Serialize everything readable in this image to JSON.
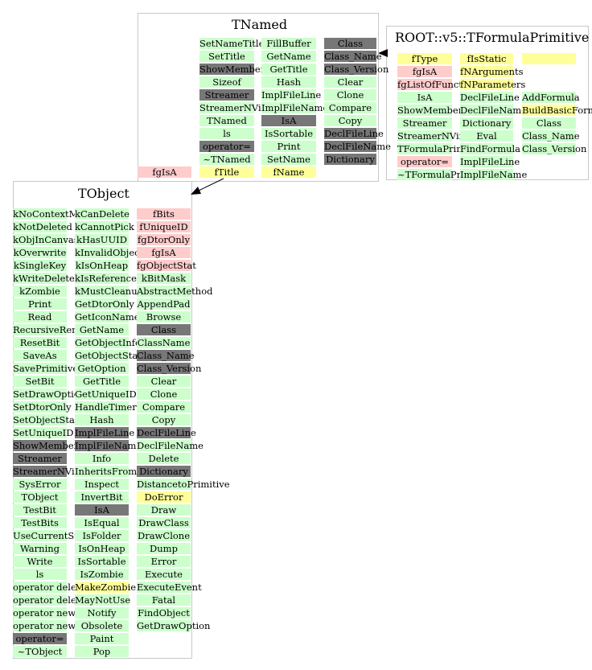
{
  "colors": {
    "method": "#ccffcc",
    "inherited": "#777777",
    "static_member": "#ffcccc",
    "data_member": "#ffff99",
    "border": "#c8c8c8"
  },
  "tnamed": {
    "title": "TNamed",
    "left_cells": [
      "fgIsA"
    ],
    "columns": [
      [
        "SetNameTitle",
        "SetTitle",
        "ShowMembers",
        "Sizeof",
        "Streamer",
        "StreamerNVirtual",
        "TNamed",
        "ls",
        "operator=",
        "~TNamed",
        "fTitle"
      ],
      [
        "FillBuffer",
        "GetName",
        "GetTitle",
        "Hash",
        "ImplFileLine",
        "ImplFileName",
        "IsA",
        "IsSortable",
        "Print",
        "SetName",
        "fName"
      ],
      [
        "Class",
        "Class_Name",
        "Class_Version",
        "Clear",
        "Clone",
        "Compare",
        "Copy",
        "DeclFileLine",
        "DeclFileName",
        "Dictionary"
      ]
    ]
  },
  "formula": {
    "title": "ROOT::v5::TFormulaPrimitive",
    "columns": [
      [
        "fType",
        "fgIsA",
        "fgListOfFunction",
        "IsA",
        "ShowMembers",
        "Streamer",
        "StreamerNVirtual",
        "TFormulaPrimitive",
        "operator=",
        "~TFormulaPrimitive"
      ],
      [
        "fIsStatic",
        "fNArguments",
        "fNParameters",
        "DeclFileLine",
        "DeclFileName",
        "Dictionary",
        "Eval",
        "FindFormula",
        "ImplFileLine",
        "ImplFileName"
      ],
      [
        "",
        "",
        "",
        "AddFormula",
        "BuildBasicFormulas",
        "Class",
        "Class_Name",
        "Class_Version"
      ]
    ]
  },
  "tobject": {
    "title": "TObject",
    "columns": [
      [
        "kNoContextMenu",
        "kNotDeleted",
        "kObjInCanvas",
        "kOverwrite",
        "kSingleKey",
        "kWriteDelete",
        "kZombie",
        "Print",
        "Read",
        "RecursiveRemove",
        "ResetBit",
        "SaveAs",
        "SavePrimitive",
        "SetBit",
        "SetDrawOption",
        "SetDtorOnly",
        "SetObjectStat",
        "SetUniqueID",
        "ShowMembers",
        "Streamer",
        "StreamerNVirtual",
        "SysError",
        "TObject",
        "TestBit",
        "TestBits",
        "UseCurrentStyle",
        "Warning",
        "Write",
        "ls",
        "operator delete",
        "operator delete[]",
        "operator new",
        "operator new[]",
        "operator=",
        "~TObject"
      ],
      [
        "kCanDelete",
        "kCannotPick",
        "kHasUUID",
        "kInvalidObject",
        "kIsOnHeap",
        "kIsReferenced",
        "kMustCleanup",
        "GetDtorOnly",
        "GetIconName",
        "GetName",
        "GetObjectInfo",
        "GetObjectStat",
        "GetOption",
        "GetTitle",
        "GetUniqueID",
        "HandleTimer",
        "Hash",
        "ImplFileLine",
        "ImplFileName",
        "Info",
        "InheritsFrom",
        "Inspect",
        "InvertBit",
        "IsA",
        "IsEqual",
        "IsFolder",
        "IsOnHeap",
        "IsSortable",
        "IsZombie",
        "MakeZombie",
        "MayNotUse",
        "Notify",
        "Obsolete",
        "Paint",
        "Pop"
      ],
      [
        "fBits",
        "fUniqueID",
        "fgDtorOnly",
        "fgIsA",
        "fgObjectStat",
        "kBitMask",
        "AbstractMethod",
        "AppendPad",
        "Browse",
        "Class",
        "ClassName",
        "Class_Name",
        "Class_Version",
        "Clear",
        "Clone",
        "Compare",
        "Copy",
        "DeclFileLine",
        "DeclFileName",
        "Delete",
        "Dictionary",
        "DistancetoPrimitive",
        "DoError",
        "Draw",
        "DrawClass",
        "DrawClone",
        "Dump",
        "Error",
        "Execute",
        "ExecuteEvent",
        "Fatal",
        "FindObject",
        "GetDrawOption"
      ]
    ]
  }
}
